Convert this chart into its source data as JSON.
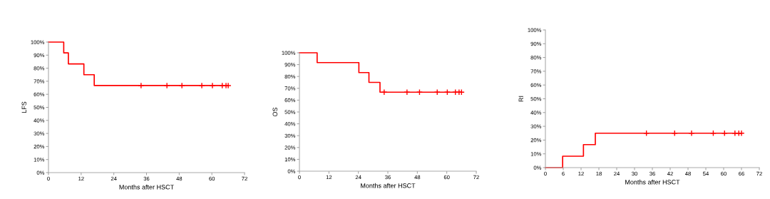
{
  "chart_data": [
    {
      "type": "step",
      "xlabel": "Months after HSCT",
      "ylabel": "LFS",
      "xlim": [
        0,
        72
      ],
      "ylim": [
        0,
        100
      ],
      "xticks": [
        0,
        12,
        24,
        36,
        48,
        60,
        72
      ],
      "yticks": [
        {
          "value": 0,
          "label": "0%"
        },
        {
          "value": 10,
          "label": "10%"
        },
        {
          "value": 20,
          "label": "20%"
        },
        {
          "value": 30,
          "label": "30%"
        },
        {
          "value": 40,
          "label": "40%"
        },
        {
          "value": 50,
          "label": "50%"
        },
        {
          "value": 60,
          "label": "60%"
        },
        {
          "value": 70,
          "label": "70%"
        },
        {
          "value": 80,
          "label": "80%"
        },
        {
          "value": 90,
          "label": "90%"
        },
        {
          "value": 100,
          "label": "100%"
        }
      ],
      "grid": false,
      "series": [
        {
          "color": "#ff0000",
          "x": [
            0,
            5.6,
            7.3,
            13,
            16.8,
            66
          ],
          "values": [
            100,
            91.7,
            83.3,
            75,
            66.7,
            66.7
          ]
        },
        {
          "type": "scatter",
          "marker": "cross",
          "color": "#ff0000",
          "x": [
            34,
            43.5,
            49,
            56.3,
            60.2,
            63.8,
            65.2,
            66
          ],
          "values": [
            66.7,
            66.7,
            66.7,
            66.7,
            66.7,
            66.7,
            66.7,
            66.7
          ]
        }
      ]
    },
    {
      "type": "step",
      "xlabel": "Months after HSCT",
      "ylabel": "OS",
      "xlim": [
        0,
        72
      ],
      "ylim": [
        0,
        100
      ],
      "xticks": [
        0,
        12,
        24,
        36,
        48,
        60,
        72
      ],
      "yticks": [
        {
          "value": 0,
          "label": "0%"
        },
        {
          "value": 10,
          "label": "10%"
        },
        {
          "value": 20,
          "label": "20%"
        },
        {
          "value": 30,
          "label": "30%"
        },
        {
          "value": 40,
          "label": "40%"
        },
        {
          "value": 50,
          "label": "50%"
        },
        {
          "value": 60,
          "label": "60%"
        },
        {
          "value": 70,
          "label": "70%"
        },
        {
          "value": 80,
          "label": "80%"
        },
        {
          "value": 90,
          "label": "90%"
        },
        {
          "value": 100,
          "label": "100%"
        }
      ],
      "grid": false,
      "series": [
        {
          "color": "#ff0000",
          "x": [
            0,
            7.2,
            24.2,
            28.3,
            32.8,
            66
          ],
          "values": [
            100,
            91.7,
            83.3,
            75,
            66.7,
            66.7
          ]
        },
        {
          "type": "scatter",
          "marker": "cross",
          "color": "#ff0000",
          "x": [
            34.5,
            43.8,
            48.9,
            56.1,
            60.2,
            63.5,
            65,
            66
          ],
          "values": [
            66.7,
            66.7,
            66.7,
            66.7,
            66.7,
            66.7,
            66.7,
            66.7
          ]
        }
      ]
    },
    {
      "type": "step",
      "xlabel": "Months after HSCT",
      "ylabel": "RI",
      "xlim": [
        0,
        72
      ],
      "ylim": [
        0,
        100
      ],
      "xticks": [
        0,
        6,
        12,
        18,
        24,
        30,
        36,
        42,
        48,
        54,
        60,
        66,
        72
      ],
      "yticks": [
        {
          "value": 0,
          "label": "0%"
        },
        {
          "value": 10,
          "label": "10%"
        },
        {
          "value": 20,
          "label": "20%"
        },
        {
          "value": 30,
          "label": "30%"
        },
        {
          "value": 40,
          "label": "40%"
        },
        {
          "value": 50,
          "label": "50%"
        },
        {
          "value": 60,
          "label": "60%"
        },
        {
          "value": 70,
          "label": "70%"
        },
        {
          "value": 80,
          "label": "80%"
        },
        {
          "value": 90,
          "label": "90%"
        },
        {
          "value": 100,
          "label": "100%"
        }
      ],
      "grid": false,
      "series": [
        {
          "color": "#ff0000",
          "x": [
            0,
            5.8,
            12.8,
            16.8,
            66
          ],
          "values": [
            0,
            8.3,
            16.7,
            25,
            25
          ]
        },
        {
          "type": "scatter",
          "marker": "cross",
          "color": "#ff0000",
          "x": [
            34,
            43.5,
            49.2,
            56.5,
            60.3,
            63.8,
            65.1,
            66
          ],
          "values": [
            25,
            25,
            25,
            25,
            25,
            25,
            25,
            25
          ]
        }
      ]
    }
  ]
}
